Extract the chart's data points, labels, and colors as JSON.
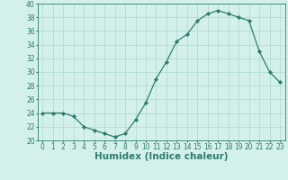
{
  "x": [
    0,
    1,
    2,
    3,
    4,
    5,
    6,
    7,
    8,
    9,
    10,
    11,
    12,
    13,
    14,
    15,
    16,
    17,
    18,
    19,
    20,
    21,
    22,
    23
  ],
  "y": [
    24,
    24,
    24,
    23.5,
    22,
    21.5,
    21,
    20.5,
    21,
    23,
    25.5,
    29,
    31.5,
    34.5,
    35.5,
    37.5,
    38.5,
    39,
    38.5,
    38,
    37.5,
    33,
    30,
    28.5
  ],
  "line_color": "#2e7d6e",
  "marker": "D",
  "marker_size": 2.2,
  "bg_color": "#d4f0eb",
  "grid_color": "#aed8d2",
  "xlabel": "Humidex (Indice chaleur)",
  "ylim": [
    20,
    40
  ],
  "xlim": [
    -0.5,
    23.5
  ],
  "yticks": [
    20,
    22,
    24,
    26,
    28,
    30,
    32,
    34,
    36,
    38,
    40
  ],
  "xticks": [
    0,
    1,
    2,
    3,
    4,
    5,
    6,
    7,
    8,
    9,
    10,
    11,
    12,
    13,
    14,
    15,
    16,
    17,
    18,
    19,
    20,
    21,
    22,
    23
  ],
  "tick_label_fontsize": 5.5,
  "xlabel_fontsize": 7.5
}
